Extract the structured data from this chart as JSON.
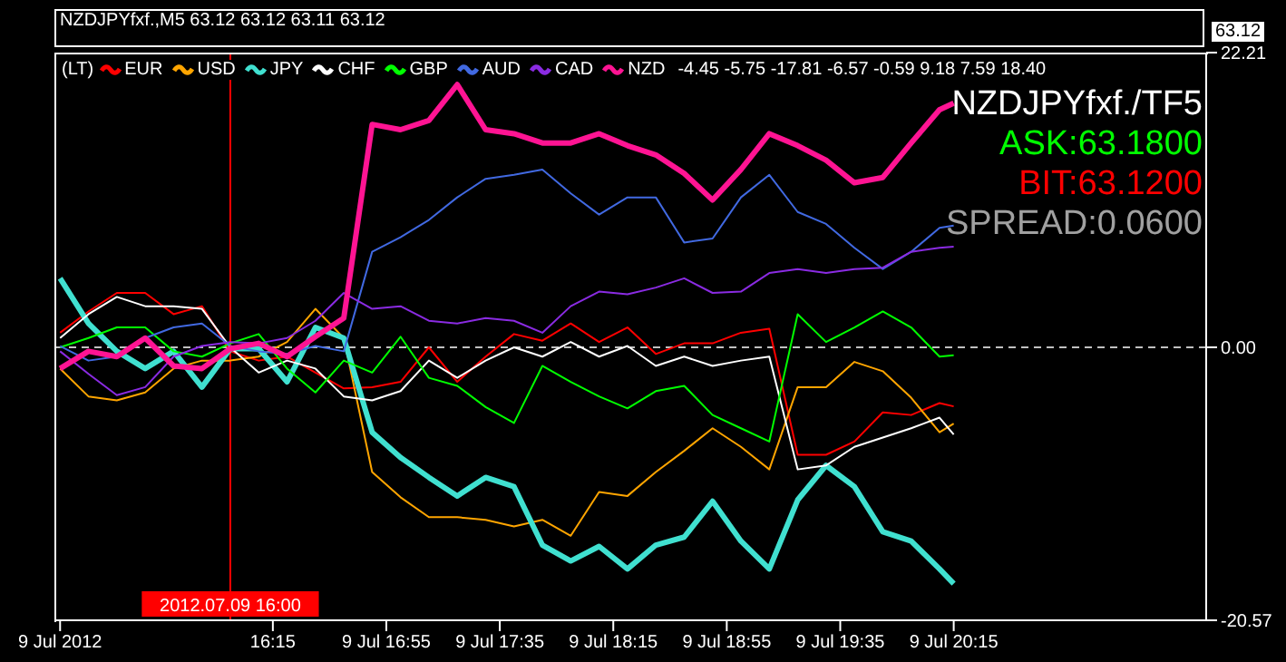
{
  "chart_data": {
    "type": "line",
    "legend_title": "(LT)",
    "legend": "top left",
    "marker": "none",
    "line_style": "solid",
    "annotations": [
      "NZDJPYfxf.,M5  63.12 63.12 63.11 63.12",
      "63.12",
      "-4.45 -5.75 -17.81 -6.57 -0.59 9.18 7.59 18.40",
      "NZDJPYfxf./TF5",
      "ASK:63.1800",
      "BIT:63.1200",
      "SPREAD:0.0600"
    ],
    "x": [
      "2012-07-09T15:00",
      "2012-07-09T15:10",
      "2012-07-09T15:20",
      "2012-07-09T15:30",
      "2012-07-09T15:40",
      "2012-07-09T15:50",
      "2012-07-09T16:00",
      "2012-07-09T16:10",
      "2012-07-09T16:20",
      "2012-07-09T16:30",
      "2012-07-09T16:40",
      "2012-07-09T16:50",
      "2012-07-09T17:00",
      "2012-07-09T17:10",
      "2012-07-09T17:20",
      "2012-07-09T17:30",
      "2012-07-09T17:40",
      "2012-07-09T17:50",
      "2012-07-09T18:00",
      "2012-07-09T18:10",
      "2012-07-09T18:20",
      "2012-07-09T18:30",
      "2012-07-09T18:40",
      "2012-07-09T18:50",
      "2012-07-09T19:00",
      "2012-07-09T19:10",
      "2012-07-09T19:20",
      "2012-07-09T19:30",
      "2012-07-09T19:40",
      "2012-07-09T19:50",
      "2012-07-09T20:00",
      "2012-07-09T20:10",
      "2012-07-09T20:15"
    ],
    "xlim": [
      "2012-07-09T14:58",
      "2012-07-09T21:44"
    ],
    "xticks": [
      {
        "value": "2012-07-09T15:00",
        "label": "9 Jul 2012"
      },
      {
        "value": "2012-07-09T16:15",
        "label": "16:15"
      },
      {
        "value": "2012-07-09T16:55",
        "label": "9 Jul 16:55"
      },
      {
        "value": "2012-07-09T17:35",
        "label": "9 Jul 17:35"
      },
      {
        "value": "2012-07-09T18:15",
        "label": "9 Jul 18:15"
      },
      {
        "value": "2012-07-09T18:55",
        "label": "9 Jul 18:55"
      },
      {
        "value": "2012-07-09T19:35",
        "label": "9 Jul 19:35"
      },
      {
        "value": "2012-07-09T20:15",
        "label": "9 Jul 20:15"
      }
    ],
    "ylim": [
      -20.57,
      22.21
    ],
    "yticks": [
      -20.57,
      {
        "value": 0,
        "label": "0.00"
      },
      22.21
    ],
    "ref_lines": [
      {
        "axis": "y",
        "value": 0,
        "color": "#c0c0c0",
        "line_style": "dashed"
      },
      {
        "axis": "x",
        "value": "2012-07-09T16:00",
        "label": "2012.07.09 16:00",
        "color": "#ff0000"
      }
    ],
    "series": [
      {
        "name": "EUR",
        "color": "#ff0000",
        "values": [
          1.1,
          2.7,
          4.1,
          4.1,
          2.5,
          3.1,
          -0.3,
          -1.0,
          -0.7,
          -1.9,
          -3.1,
          -3.0,
          -2.6,
          0,
          -2.6,
          -0.7,
          1.0,
          0.5,
          1.8,
          0.4,
          1.5,
          -0.5,
          0.3,
          0.3,
          1.1,
          1.4,
          -8.1,
          -8.1,
          -7.1,
          -4.9,
          -5.1,
          -4.2,
          -4.45
        ]
      },
      {
        "name": "USD",
        "color": "#ffa500",
        "values": [
          -1.6,
          -3.7,
          -4.0,
          -3.4,
          -1.6,
          -1.0,
          -1.0,
          -0.7,
          0.4,
          2.9,
          0.7,
          -9.4,
          -11.3,
          -12.8,
          -12.8,
          -13.0,
          -13.5,
          -13.0,
          -14.2,
          -10.9,
          -11.2,
          -9.4,
          -7.8,
          -6.1,
          -7.5,
          -9.2,
          -3.0,
          -3.0,
          -1.1,
          -1.8,
          -3.8,
          -6.4,
          -5.75
        ]
      },
      {
        "name": "JPY",
        "color": "#40e0d0",
        "values": [
          5.2,
          1.8,
          -0.3,
          -1.6,
          -0.3,
          -3.0,
          -0.1,
          -0.1,
          -2.6,
          1.5,
          0.7,
          -6.4,
          -8.3,
          -9.8,
          -11.2,
          -9.8,
          -10.5,
          -14.9,
          -16.1,
          -15.0,
          -16.7,
          -14.9,
          -14.3,
          -11.6,
          -14.6,
          -16.7,
          -11.5,
          -8.9,
          -10.5,
          -13.9,
          -14.6,
          -16.7,
          -17.81
        ]
      },
      {
        "name": "CHF",
        "color": "#ffffff",
        "values": [
          0.7,
          2.5,
          3.8,
          3.1,
          3.1,
          2.9,
          0,
          -1.9,
          -1.0,
          -1.6,
          -3.7,
          -4.0,
          -3.3,
          -1.0,
          -2.3,
          -1.0,
          0,
          -0.7,
          0.4,
          -0.7,
          0.1,
          -1.4,
          -0.7,
          -1.4,
          -1.0,
          -0.7,
          -9.2,
          -8.9,
          -7.5,
          -6.8,
          -6.1,
          -5.3,
          -6.57
        ]
      },
      {
        "name": "GBP",
        "color": "#00ff00",
        "values": [
          0,
          0.7,
          1.5,
          1.5,
          -0.3,
          -0.7,
          0.3,
          1.0,
          -1.6,
          -3.4,
          -1.0,
          -1.9,
          0.8,
          -2.3,
          -2.9,
          -4.5,
          -5.7,
          -1.4,
          -2.6,
          -3.7,
          -4.6,
          -3.3,
          -2.9,
          -5.1,
          -6.1,
          -7.1,
          2.5,
          0.4,
          1.5,
          2.7,
          1.5,
          -0.7,
          -0.59
        ]
      },
      {
        "name": "AUD",
        "color": "#4169e1",
        "values": [
          0.1,
          -1.0,
          -0.7,
          0.7,
          1.5,
          1.8,
          0.1,
          -0.3,
          -0.5,
          0.1,
          -0.3,
          7.2,
          8.3,
          9.6,
          11.3,
          12.7,
          13.0,
          13.4,
          11.6,
          10.0,
          11.3,
          11.3,
          7.9,
          8.2,
          11.3,
          13.0,
          10.2,
          9.3,
          7.5,
          5.9,
          7.2,
          9.0,
          9.18
        ]
      },
      {
        "name": "CAD",
        "color": "#8a2be2",
        "values": [
          -0.3,
          -2.0,
          -3.6,
          -3.0,
          -0.7,
          0.1,
          0.4,
          0.3,
          0.7,
          2.0,
          4.1,
          2.9,
          3.1,
          2.0,
          1.8,
          2.2,
          2.0,
          1.1,
          3.1,
          4.2,
          4.0,
          4.5,
          5.2,
          4.1,
          4.2,
          5.6,
          5.9,
          5.6,
          5.9,
          6.0,
          7.2,
          7.5,
          7.59
        ]
      },
      {
        "name": "NZD",
        "color": "#ff1493",
        "values": [
          -1.6,
          -0.3,
          -0.7,
          0.7,
          -1.4,
          -1.6,
          -0.1,
          0.3,
          -0.7,
          0.8,
          2.2,
          16.8,
          16.4,
          17.1,
          19.8,
          16.4,
          16.1,
          15.4,
          15.4,
          16.1,
          15.2,
          14.5,
          13.1,
          11.1,
          13.4,
          16.1,
          15.2,
          14.1,
          12.4,
          12.8,
          15.4,
          17.9,
          18.4
        ]
      }
    ]
  }
}
